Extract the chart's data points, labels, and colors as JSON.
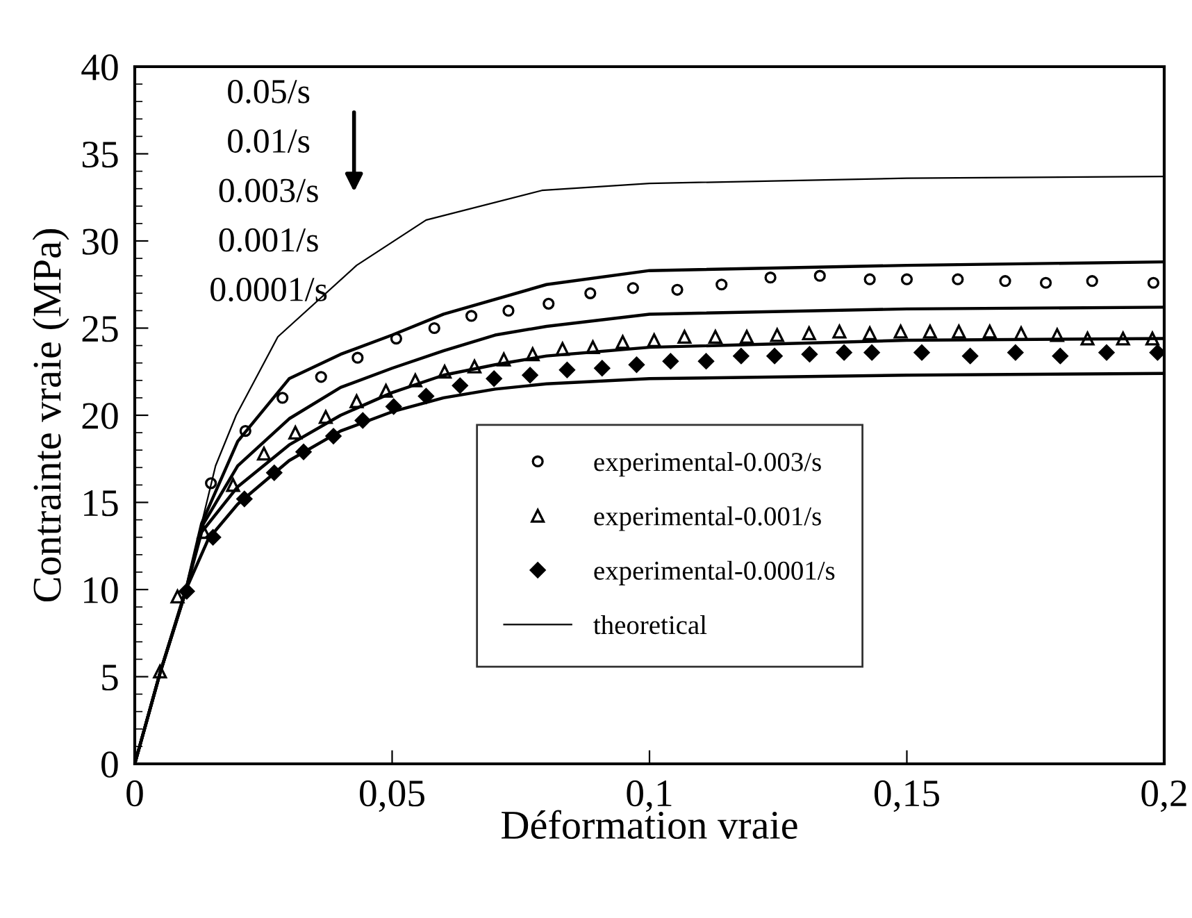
{
  "chart_data": {
    "type": "scatter",
    "xlabel": "Déformation vraie",
    "ylabel": "Contrainte vraie (MPa)",
    "xlim": [
      0,
      0.2
    ],
    "xticks": [
      {
        "value": 0,
        "label": "0"
      },
      {
        "value": 0.05,
        "label": "0,05"
      },
      {
        "value": 0.1,
        "label": "0,1"
      },
      {
        "value": 0.15,
        "label": "0,15"
      },
      {
        "value": 0.2,
        "label": "0,2"
      }
    ],
    "ylim": [
      0,
      40
    ],
    "yticks": [
      0,
      5,
      10,
      15,
      20,
      25,
      30,
      35,
      40
    ],
    "grid": false,
    "legend": "bottom right",
    "annotations": [
      "0.05/s",
      "0.01/s",
      "0.003/s",
      "0.001/s",
      "0.0001/s"
    ],
    "series": [
      {
        "name": "experimental-0.003/s",
        "type": "scatter",
        "marker": "circle",
        "color": "#000000",
        "x": [
          0.0148,
          0.0215,
          0.0287,
          0.0362,
          0.0433,
          0.0508,
          0.0582,
          0.0654,
          0.0726,
          0.0804,
          0.0885,
          0.0968,
          0.1054,
          0.114,
          0.1235,
          0.1331,
          0.1428,
          0.15,
          0.1599,
          0.1691,
          0.177,
          0.186,
          0.1979
        ],
        "values": [
          16.1,
          19.1,
          21.0,
          22.2,
          23.3,
          24.4,
          25.0,
          25.7,
          26.0,
          26.4,
          27.0,
          27.3,
          27.2,
          27.5,
          27.9,
          28.0,
          27.8,
          27.8,
          27.8,
          27.7,
          27.6,
          27.7,
          27.6
        ]
      },
      {
        "name": "experimental-0.001/s",
        "type": "scatter",
        "marker": "triangle",
        "color": "#000000",
        "x": [
          0.0049,
          0.0083,
          0.0134,
          0.0191,
          0.0251,
          0.0312,
          0.0371,
          0.0431,
          0.0488,
          0.0545,
          0.0602,
          0.066,
          0.0717,
          0.0773,
          0.0831,
          0.089,
          0.0948,
          0.1009,
          0.1068,
          0.1128,
          0.1189,
          0.1248,
          0.131,
          0.1369,
          0.1428,
          0.1488,
          0.1545,
          0.1601,
          0.1661,
          0.1722,
          0.1792,
          0.1851,
          0.192,
          0.1977
        ],
        "values": [
          5.3,
          9.6,
          13.3,
          16.0,
          17.8,
          19.0,
          19.9,
          20.8,
          21.4,
          22.0,
          22.5,
          22.8,
          23.2,
          23.5,
          23.8,
          23.9,
          24.2,
          24.3,
          24.5,
          24.5,
          24.5,
          24.6,
          24.7,
          24.8,
          24.7,
          24.8,
          24.8,
          24.8,
          24.8,
          24.7,
          24.6,
          24.4,
          24.4,
          24.4
        ]
      },
      {
        "name": "experimental-0.0001/s",
        "type": "scatter",
        "marker": "diamond",
        "color": "#000000",
        "x": [
          0.0101,
          0.0152,
          0.0213,
          0.0271,
          0.0328,
          0.0386,
          0.0443,
          0.0503,
          0.0566,
          0.0632,
          0.0698,
          0.0768,
          0.084,
          0.0908,
          0.0975,
          0.1041,
          0.111,
          0.1178,
          0.1243,
          0.1311,
          0.1378,
          0.1432,
          0.1529,
          0.1623,
          0.1711,
          0.1798,
          0.1888,
          0.1987
        ],
        "values": [
          9.9,
          13.0,
          15.2,
          16.7,
          17.9,
          18.8,
          19.7,
          20.5,
          21.1,
          21.7,
          22.1,
          22.3,
          22.6,
          22.7,
          22.9,
          23.1,
          23.1,
          23.4,
          23.4,
          23.5,
          23.6,
          23.6,
          23.6,
          23.4,
          23.6,
          23.4,
          23.6,
          23.6
        ]
      },
      {
        "name": "theoretical",
        "type": "line",
        "color": "#000000",
        "x": [
          0,
          0.005,
          0.0098,
          0.013,
          0.0157,
          0.0197,
          0.0278,
          0.0431,
          0.0566,
          0.0791,
          0.1,
          0.15,
          0.2
        ],
        "values": [
          0,
          5.3,
          9.8,
          13.8,
          17.1,
          20.0,
          24.5,
          28.6,
          31.2,
          32.9,
          33.3,
          33.6,
          33.7
        ]
      },
      {
        "type": "line",
        "color": "#000000",
        "x": [
          0,
          0.005,
          0.0098,
          0.013,
          0.02,
          0.03,
          0.04,
          0.05,
          0.06,
          0.08,
          0.1,
          0.15,
          0.2
        ],
        "values": [
          0,
          5.3,
          9.8,
          13.8,
          18.5,
          22.1,
          23.5,
          24.6,
          25.8,
          27.5,
          28.3,
          28.6,
          28.8
        ]
      },
      {
        "type": "line",
        "color": "#000000",
        "x": [
          0,
          0.005,
          0.0098,
          0.013,
          0.02,
          0.03,
          0.04,
          0.05,
          0.06,
          0.07,
          0.08,
          0.1,
          0.15,
          0.2
        ],
        "values": [
          0,
          5.3,
          9.8,
          13.6,
          17.1,
          19.8,
          21.6,
          22.7,
          23.7,
          24.6,
          25.1,
          25.8,
          26.1,
          26.2
        ]
      },
      {
        "type": "line",
        "color": "#000000",
        "x": [
          0,
          0.005,
          0.0098,
          0.013,
          0.02,
          0.03,
          0.04,
          0.05,
          0.06,
          0.07,
          0.08,
          0.1,
          0.15,
          0.2
        ],
        "values": [
          0,
          5.3,
          9.8,
          13.3,
          15.9,
          18.3,
          20.0,
          21.3,
          22.3,
          22.9,
          23.4,
          23.9,
          24.3,
          24.4
        ]
      },
      {
        "type": "line",
        "color": "#000000",
        "x": [
          0,
          0.005,
          0.0098,
          0.0143,
          0.02,
          0.03,
          0.04,
          0.05,
          0.06,
          0.07,
          0.08,
          0.1,
          0.15,
          0.2
        ],
        "values": [
          0,
          5.3,
          9.9,
          12.9,
          14.9,
          17.4,
          19.1,
          20.2,
          21.0,
          21.5,
          21.8,
          22.1,
          22.3,
          22.4
        ]
      }
    ]
  }
}
